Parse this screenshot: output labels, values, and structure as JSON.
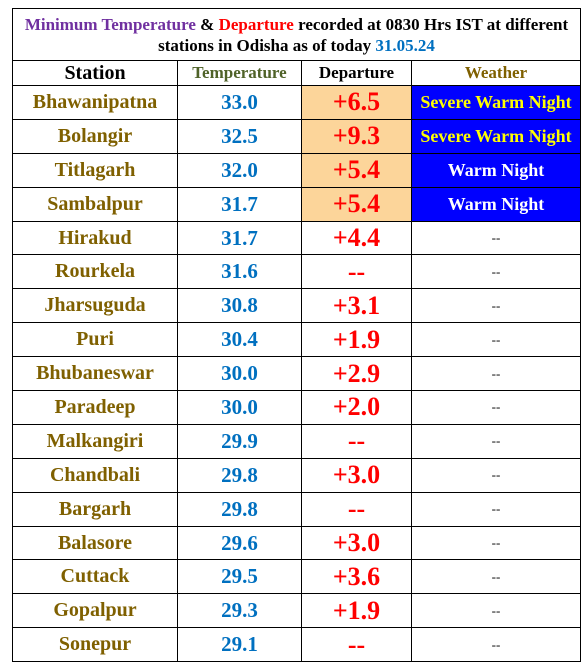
{
  "title": {
    "part1": "Minimum Temperature",
    "amp": " & ",
    "part2": "Departure",
    "part3": " recorded at 0830 Hrs IST at different stations in Odisha as of today ",
    "date": "31.05.24"
  },
  "headers": {
    "station": "Station",
    "temperature": "Temperature",
    "departure": "Departure",
    "weather": "Weather"
  },
  "rows": [
    {
      "station": "Bhawanipatna",
      "temperature": "33.0",
      "departure": "+6.5",
      "weather": "Severe Warm Night"
    },
    {
      "station": "Bolangir",
      "temperature": "32.5",
      "departure": "+9.3",
      "weather": "Severe Warm Night"
    },
    {
      "station": "Titlagarh",
      "temperature": "32.0",
      "departure": "+5.4",
      "weather": "Warm Night"
    },
    {
      "station": "Sambalpur",
      "temperature": "31.7",
      "departure": "+5.4",
      "weather": "Warm Night"
    },
    {
      "station": "Hirakud",
      "temperature": "31.7",
      "departure": "+4.4",
      "weather": "--"
    },
    {
      "station": "Rourkela",
      "temperature": "31.6",
      "departure": "--",
      "weather": "--"
    },
    {
      "station": "Jharsuguda",
      "temperature": "30.8",
      "departure": "+3.1",
      "weather": "--"
    },
    {
      "station": "Puri",
      "temperature": "30.4",
      "departure": "+1.9",
      "weather": "--"
    },
    {
      "station": "Bhubaneswar",
      "temperature": "30.0",
      "departure": "+2.9",
      "weather": "--"
    },
    {
      "station": "Paradeep",
      "temperature": "30.0",
      "departure": "+2.0",
      "weather": "--"
    },
    {
      "station": "Malkangiri",
      "temperature": "29.9",
      "departure": "--",
      "weather": "--"
    },
    {
      "station": "Chandbali",
      "temperature": "29.8",
      "departure": "+3.0",
      "weather": "--"
    },
    {
      "station": "Bargarh",
      "temperature": "29.8",
      "departure": "--",
      "weather": "--"
    },
    {
      "station": "Balasore",
      "temperature": "29.6",
      "departure": "+3.0",
      "weather": "--"
    },
    {
      "station": "Cuttack",
      "temperature": "29.5",
      "departure": "+3.6",
      "weather": "--"
    },
    {
      "station": "Gopalpur",
      "temperature": "29.3",
      "departure": "+1.9",
      "weather": "--"
    },
    {
      "station": "Sonepur",
      "temperature": "29.1",
      "departure": "--",
      "weather": "--"
    }
  ],
  "colors": {
    "station": "#7f6000",
    "temperature": "#0070c0",
    "departure": "#ff0000",
    "departure_highlight": "#fcd59a",
    "weather_highlight": "#0000ff",
    "severe_text": "#ffff00",
    "warm_text": "#ffffff"
  }
}
